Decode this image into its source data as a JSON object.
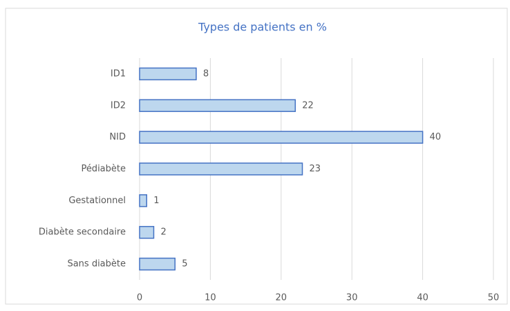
{
  "chart_data": {
    "type": "bar",
    "title": "Types de patients en %",
    "categories": [
      "ID1",
      "ID2",
      "NID",
      "Pédiabète",
      "Gestationnel",
      "Diabète secondaire",
      "Sans diabète"
    ],
    "values": [
      8,
      22,
      40,
      23,
      1,
      2,
      5
    ],
    "color": "#bdd7ee",
    "edge_color": "#4472c4",
    "xlim": [
      0,
      50
    ],
    "xticks": [
      0,
      10,
      20,
      30,
      40,
      50
    ],
    "grid": true
  }
}
